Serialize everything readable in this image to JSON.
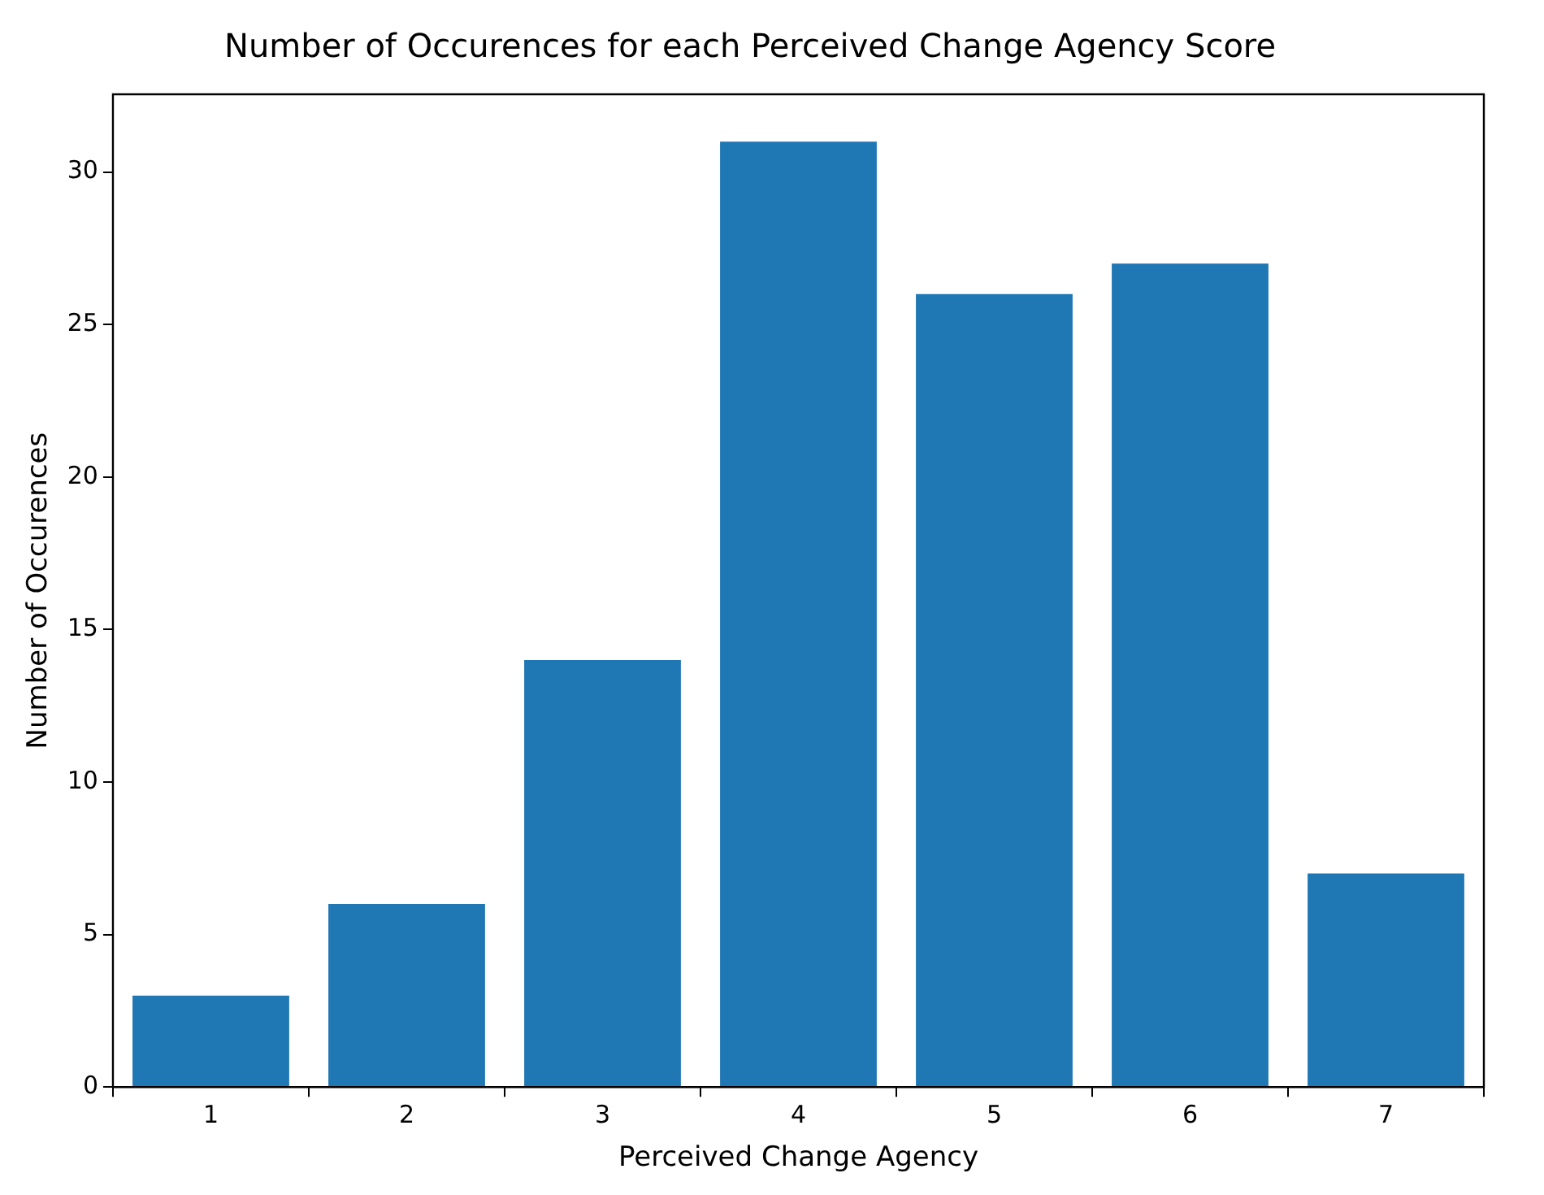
{
  "chart_data": {
    "type": "bar",
    "title": "Number of Occurences for each Perceived Change Agency Score",
    "xlabel": "Perceived Change Agency",
    "ylabel": "Number of Occurences",
    "categories": [
      "1",
      "2",
      "3",
      "4",
      "5",
      "6",
      "7"
    ],
    "values": [
      3,
      6,
      14,
      31,
      26,
      27,
      7
    ],
    "color": "#1f77b4",
    "ylim": [
      0,
      32.55
    ],
    "yticks": [
      0,
      5,
      10,
      15,
      20,
      25,
      30
    ],
    "grid": false
  }
}
